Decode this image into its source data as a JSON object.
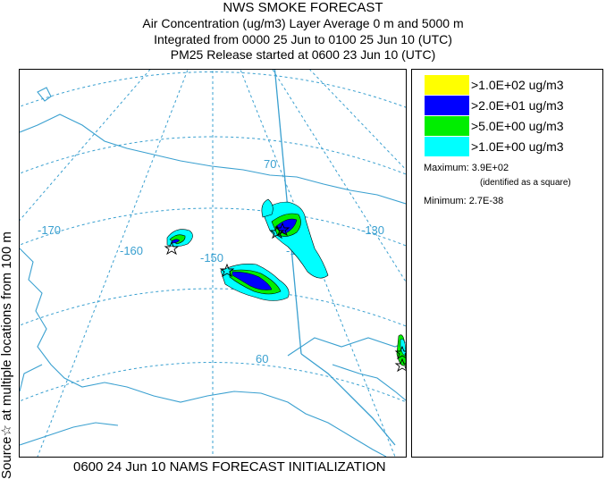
{
  "header": {
    "line1": "NWS SMOKE FORECAST",
    "line2": "Air Concentration (ug/m3) Layer Average    0 m and  5000 m",
    "line3": "Integrated from 0000 25 Jun to 0100 25 Jun 10 (UTC)",
    "line4": "PM25 Release started at 0600 23 Jun 10 (UTC)"
  },
  "side_label": "Source☆ at multiple locations  from   100 m",
  "footer": "0600 24 Jun 10 NAMS FORECAST INITIALIZATION",
  "map": {
    "lon_labels": [
      "-170",
      "-160",
      "-150",
      "-140",
      "-130"
    ],
    "lat_labels": [
      "70",
      "60"
    ]
  },
  "legend": {
    "items": [
      {
        "label": ">1.0E+02 ug/m3",
        "color": "#ffff00"
      },
      {
        "label": ">2.0E+01 ug/m3",
        "color": "#0000ff"
      },
      {
        "label": ">5.0E+00 ug/m3",
        "color": "#00ee00"
      },
      {
        "label": ">1.0E+00 ug/m3",
        "color": "#00ffff"
      }
    ],
    "maximum_label": "Maximum: 3.9E+02",
    "maximum_note": "(identified as a square)",
    "minimum_label": "Minimum: 2.7E-38"
  }
}
